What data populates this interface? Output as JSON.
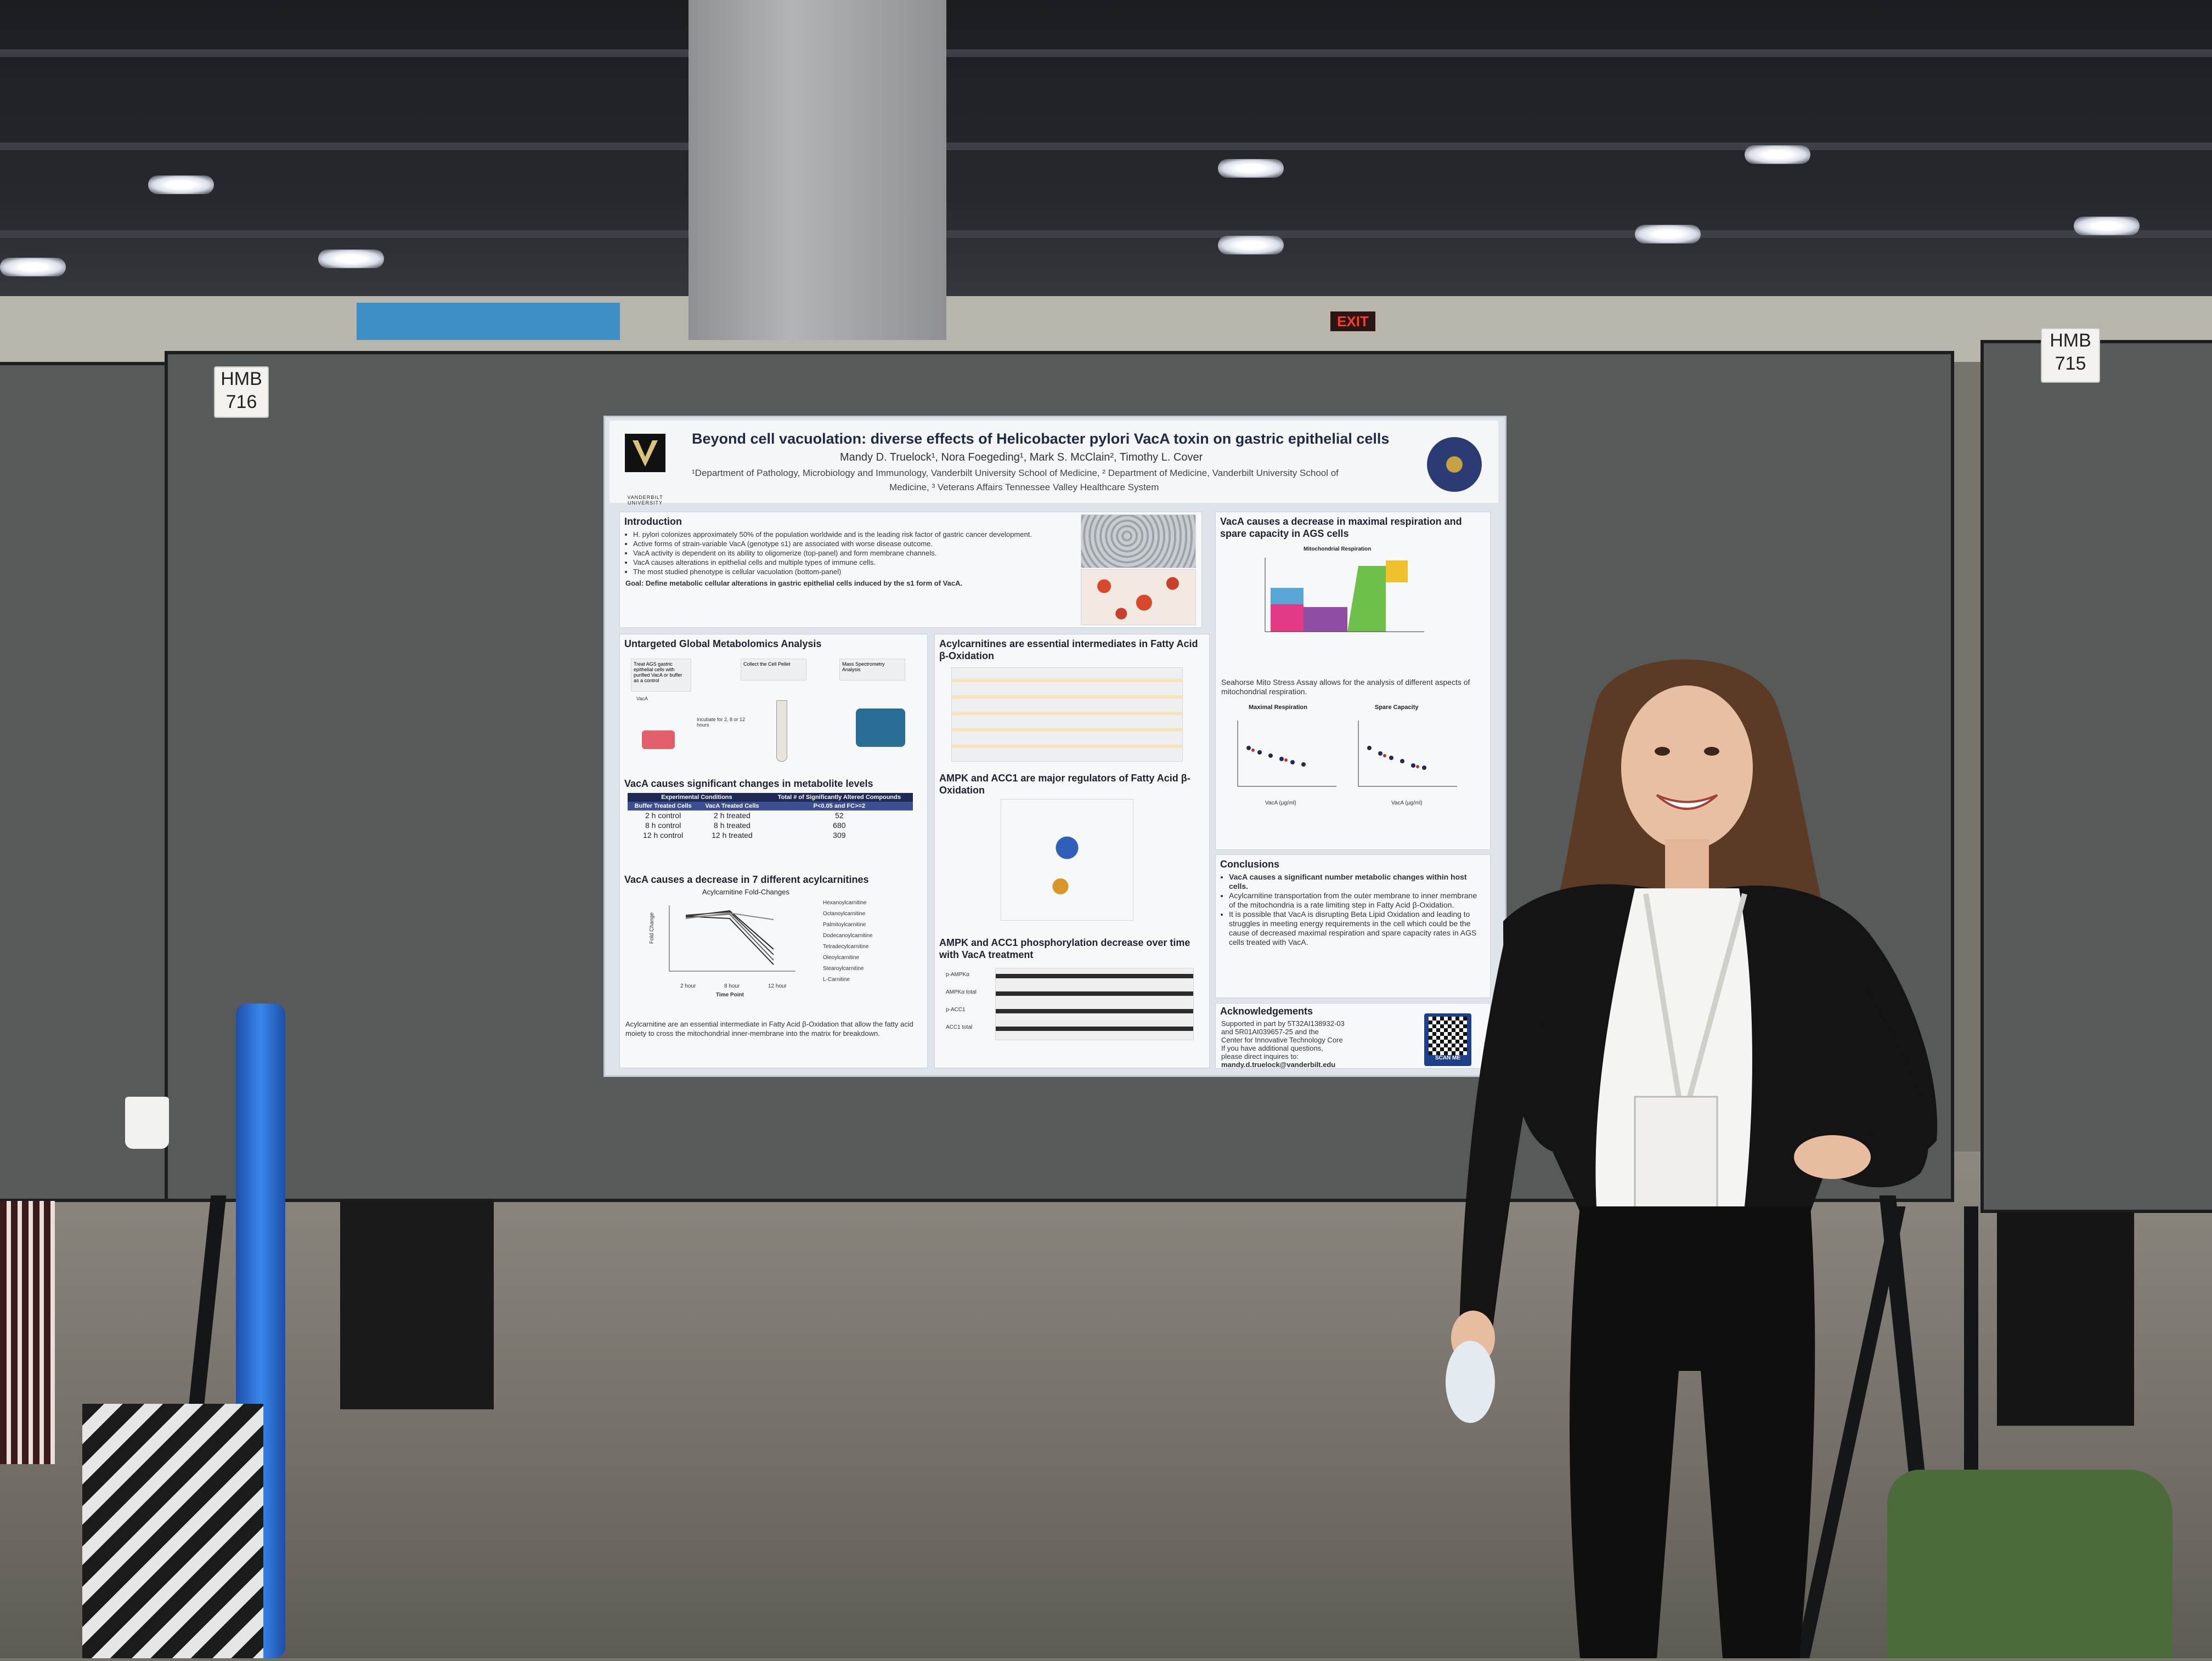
{
  "scene": {
    "exit_sign": "EXIT",
    "board_left_label": [
      "HMB",
      "716"
    ],
    "board_right_label": [
      "HMB",
      "715"
    ]
  },
  "poster": {
    "title": "Beyond cell vacuolation: diverse effects of Helicobacter pylori VacA toxin on gastric epithelial cells",
    "logo_text": "VANDERBILT UNIVERSITY",
    "authors": "Mandy D. Truelock¹, Nora Foegeding¹, Mark S. McClain², Timothy L. Cover",
    "affiliation_1": "¹Department of Pathology, Microbiology and Immunology, Vanderbilt University School of Medicine, ² Department of Medicine, Vanderbilt University School of",
    "affiliation_2": "Medicine, ³ Veterans Affairs Tennessee Valley Healthcare System",
    "intro": {
      "title": "Introduction",
      "bullets": [
        "H. pylori colonizes approximately 50% of the population worldwide and is the leading risk factor of gastric cancer development.",
        "Active forms of strain-variable VacA (genotype s1) are associated with worse disease outcome.",
        "VacA activity is dependent on its ability to oligomerize (top-panel) and form membrane channels.",
        "VacA causes alterations in epithelial cells and multiple types of immune cells.",
        "The most studied phenotype is cellular vacuolation (bottom-panel)"
      ],
      "goal": "Goal: Define metabolic cellular alterations in gastric epithelial cells induced by the s1 form of VacA."
    },
    "metabolomics": {
      "title": "Untargeted Global Metabolomics Analysis",
      "step_1": "Treat AGS gastric epithelial cells with purified VacA or buffer as a control",
      "step_2": "Collect the Cell Pellet",
      "step_3": "Mass Spectrometry Analysis",
      "incubate": "Incubate for 2, 8 or 12 hours",
      "vaca_label": "VacA",
      "changes_title": "VacA causes significant changes in metabolite levels",
      "table": {
        "h1": "Experimental Conditions",
        "h2": "Total # of Significantly Altered Compounds",
        "sub1": "Buffer Treated Cells",
        "sub2": "VacA Treated Cells",
        "sub3": "P<0.05 and FC>=2",
        "rows": [
          [
            "2 h control",
            "2 h treated",
            "52"
          ],
          [
            "8 h control",
            "8 h treated",
            "680"
          ],
          [
            "12 h control",
            "12 h treated",
            "309"
          ]
        ]
      },
      "acyl_title": "VacA causes a decrease in 7 different acylcarnitines",
      "acyl_chart_title": "Acylcarnitine Fold-Changes",
      "acyl_ylabel": "Fold Change",
      "acyl_xlabel": "Time Point",
      "acyl_ticks": [
        "2 hour",
        "8 hour",
        "12 hour"
      ],
      "acyl_legend": [
        "Hexanoylcarnitine",
        "Octanoylcarnitine",
        "Palmitoylcarnitine",
        "Dodecanoylcarnitine",
        "Tetradecylcarnitine",
        "Oleoylcarnitine",
        "Stearoylcarnitine",
        "L-Carnitine"
      ],
      "acyl_text": "Acylcarnitine are an essential intermediate in Fatty Acid β-Oxidation that allow the fatty acid moiety to cross the mitochondrial inner-membrane into the matrix for breakdown."
    },
    "middle": {
      "acyl_essential_title": "Acylcarnitines are essential intermediates in Fatty Acid β-Oxidation",
      "ampk_title": "AMPK and ACC1 are major regulators of Fatty Acid β-Oxidation",
      "phospho_title": "AMPK and ACC1 phosphorylation decrease over time with VacA treatment",
      "blot_labels": [
        "p-AMPKα",
        "AMPKα total",
        "p-ACC1",
        "ACC1 total"
      ]
    },
    "right": {
      "resp_title": "VacA causes a decrease in maximal respiration and spare capacity in AGS cells",
      "mito_chart_title": "Mitochondrial Respiration",
      "seahorse_text": "Seahorse Mito Stress Assay allows for the analysis of different aspects of mitochondrial respiration.",
      "max_resp_label": "Maximal Respiration",
      "spare_cap_label": "Spare Capacity",
      "vaca_axis": "VacA (μg/ml)",
      "conclusions_title": "Conclusions",
      "conclusions": [
        "VacA causes a significant number metabolic changes within host cells.",
        "Acylcarnitine transportation from the outer membrane to inner membrane of the mitochondria is a rate limiting step in Fatty Acid β-Oxidation.",
        "It is possible that VacA is disrupting Beta Lipid Oxidation and leading to struggles in meeting energy requirements in the cell which could be the cause of decreased maximal respiration and spare capacity rates in AGS cells treated with VacA."
      ],
      "ack_title": "Acknowledgements",
      "ack_lines": [
        "Supported in part by 5T32AI138932-03",
        "and 5R01AI039657-25 and the",
        "Center for Innovative Technology Core",
        "If you have additional questions,",
        "please direct inquires to:"
      ],
      "email": "mandy.d.truelock@vanderbilt.edu",
      "qr_label": "SCAN ME"
    }
  },
  "colors": {
    "board": "#565a58",
    "poster_bg": "#dfe3ea",
    "title_navy": "#1f2a44",
    "table_header": "#1e2a55",
    "tube_blue": "#2a6fd6"
  }
}
